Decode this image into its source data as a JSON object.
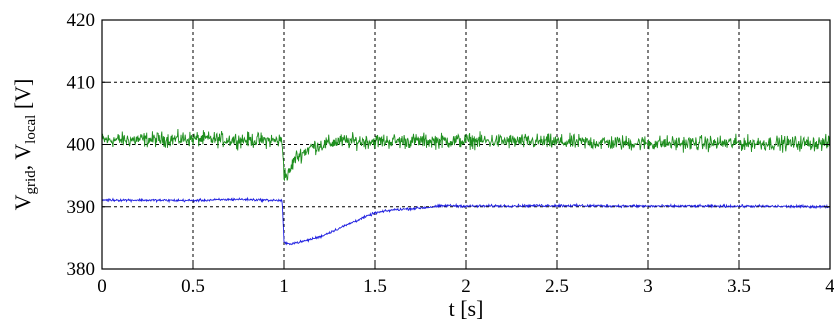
{
  "chart_data": {
    "type": "line",
    "xlabel": "t [s]",
    "ylabel": {
      "v1": "V",
      "v1_sub": "grid",
      "sep": ", ",
      "v2": "V",
      "v2_sub": "local",
      "unit": " [V]"
    },
    "xlim": [
      0,
      4
    ],
    "ylim": [
      380,
      420
    ],
    "grid": true,
    "x_ticks": [
      0,
      0.5,
      1,
      1.5,
      2,
      2.5,
      3,
      3.5,
      4
    ],
    "x_tick_labels": [
      "0",
      "0.5",
      "1",
      "1.5",
      "2",
      "2.5",
      "3",
      "3.5",
      "4"
    ],
    "y_ticks": [
      380,
      390,
      400,
      410,
      420
    ],
    "y_tick_labels": [
      "380",
      "390",
      "400",
      "410",
      "420"
    ],
    "series": [
      {
        "color": "#1f8f1f",
        "noise_amplitude": 0.9,
        "points": [
          [
            0,
            400.7
          ],
          [
            0.5,
            400.9
          ],
          [
            0.99,
            400.6
          ],
          [
            1.0,
            395.5
          ],
          [
            1.02,
            394.8
          ],
          [
            1.06,
            397.8
          ],
          [
            1.15,
            399.6
          ],
          [
            1.3,
            400.5
          ],
          [
            2.0,
            400.6
          ],
          [
            3.0,
            400.2
          ],
          [
            4.0,
            400.2
          ]
        ]
      },
      {
        "color": "#2020e0",
        "noise_amplitude": 0.15,
        "points": [
          [
            0,
            391.1
          ],
          [
            0.5,
            391.0
          ],
          [
            0.75,
            391.2
          ],
          [
            0.99,
            391.0
          ],
          [
            1.0,
            384.3
          ],
          [
            1.02,
            384.0
          ],
          [
            1.1,
            384.4
          ],
          [
            1.2,
            385.2
          ],
          [
            1.3,
            386.5
          ],
          [
            1.4,
            387.8
          ],
          [
            1.5,
            389.0
          ],
          [
            1.6,
            389.5
          ],
          [
            1.75,
            389.8
          ],
          [
            1.9,
            390.2
          ],
          [
            2.0,
            390.1
          ],
          [
            2.5,
            390.2
          ],
          [
            3.0,
            390.1
          ],
          [
            3.5,
            390.1
          ],
          [
            4.0,
            390.0
          ]
        ]
      }
    ]
  }
}
